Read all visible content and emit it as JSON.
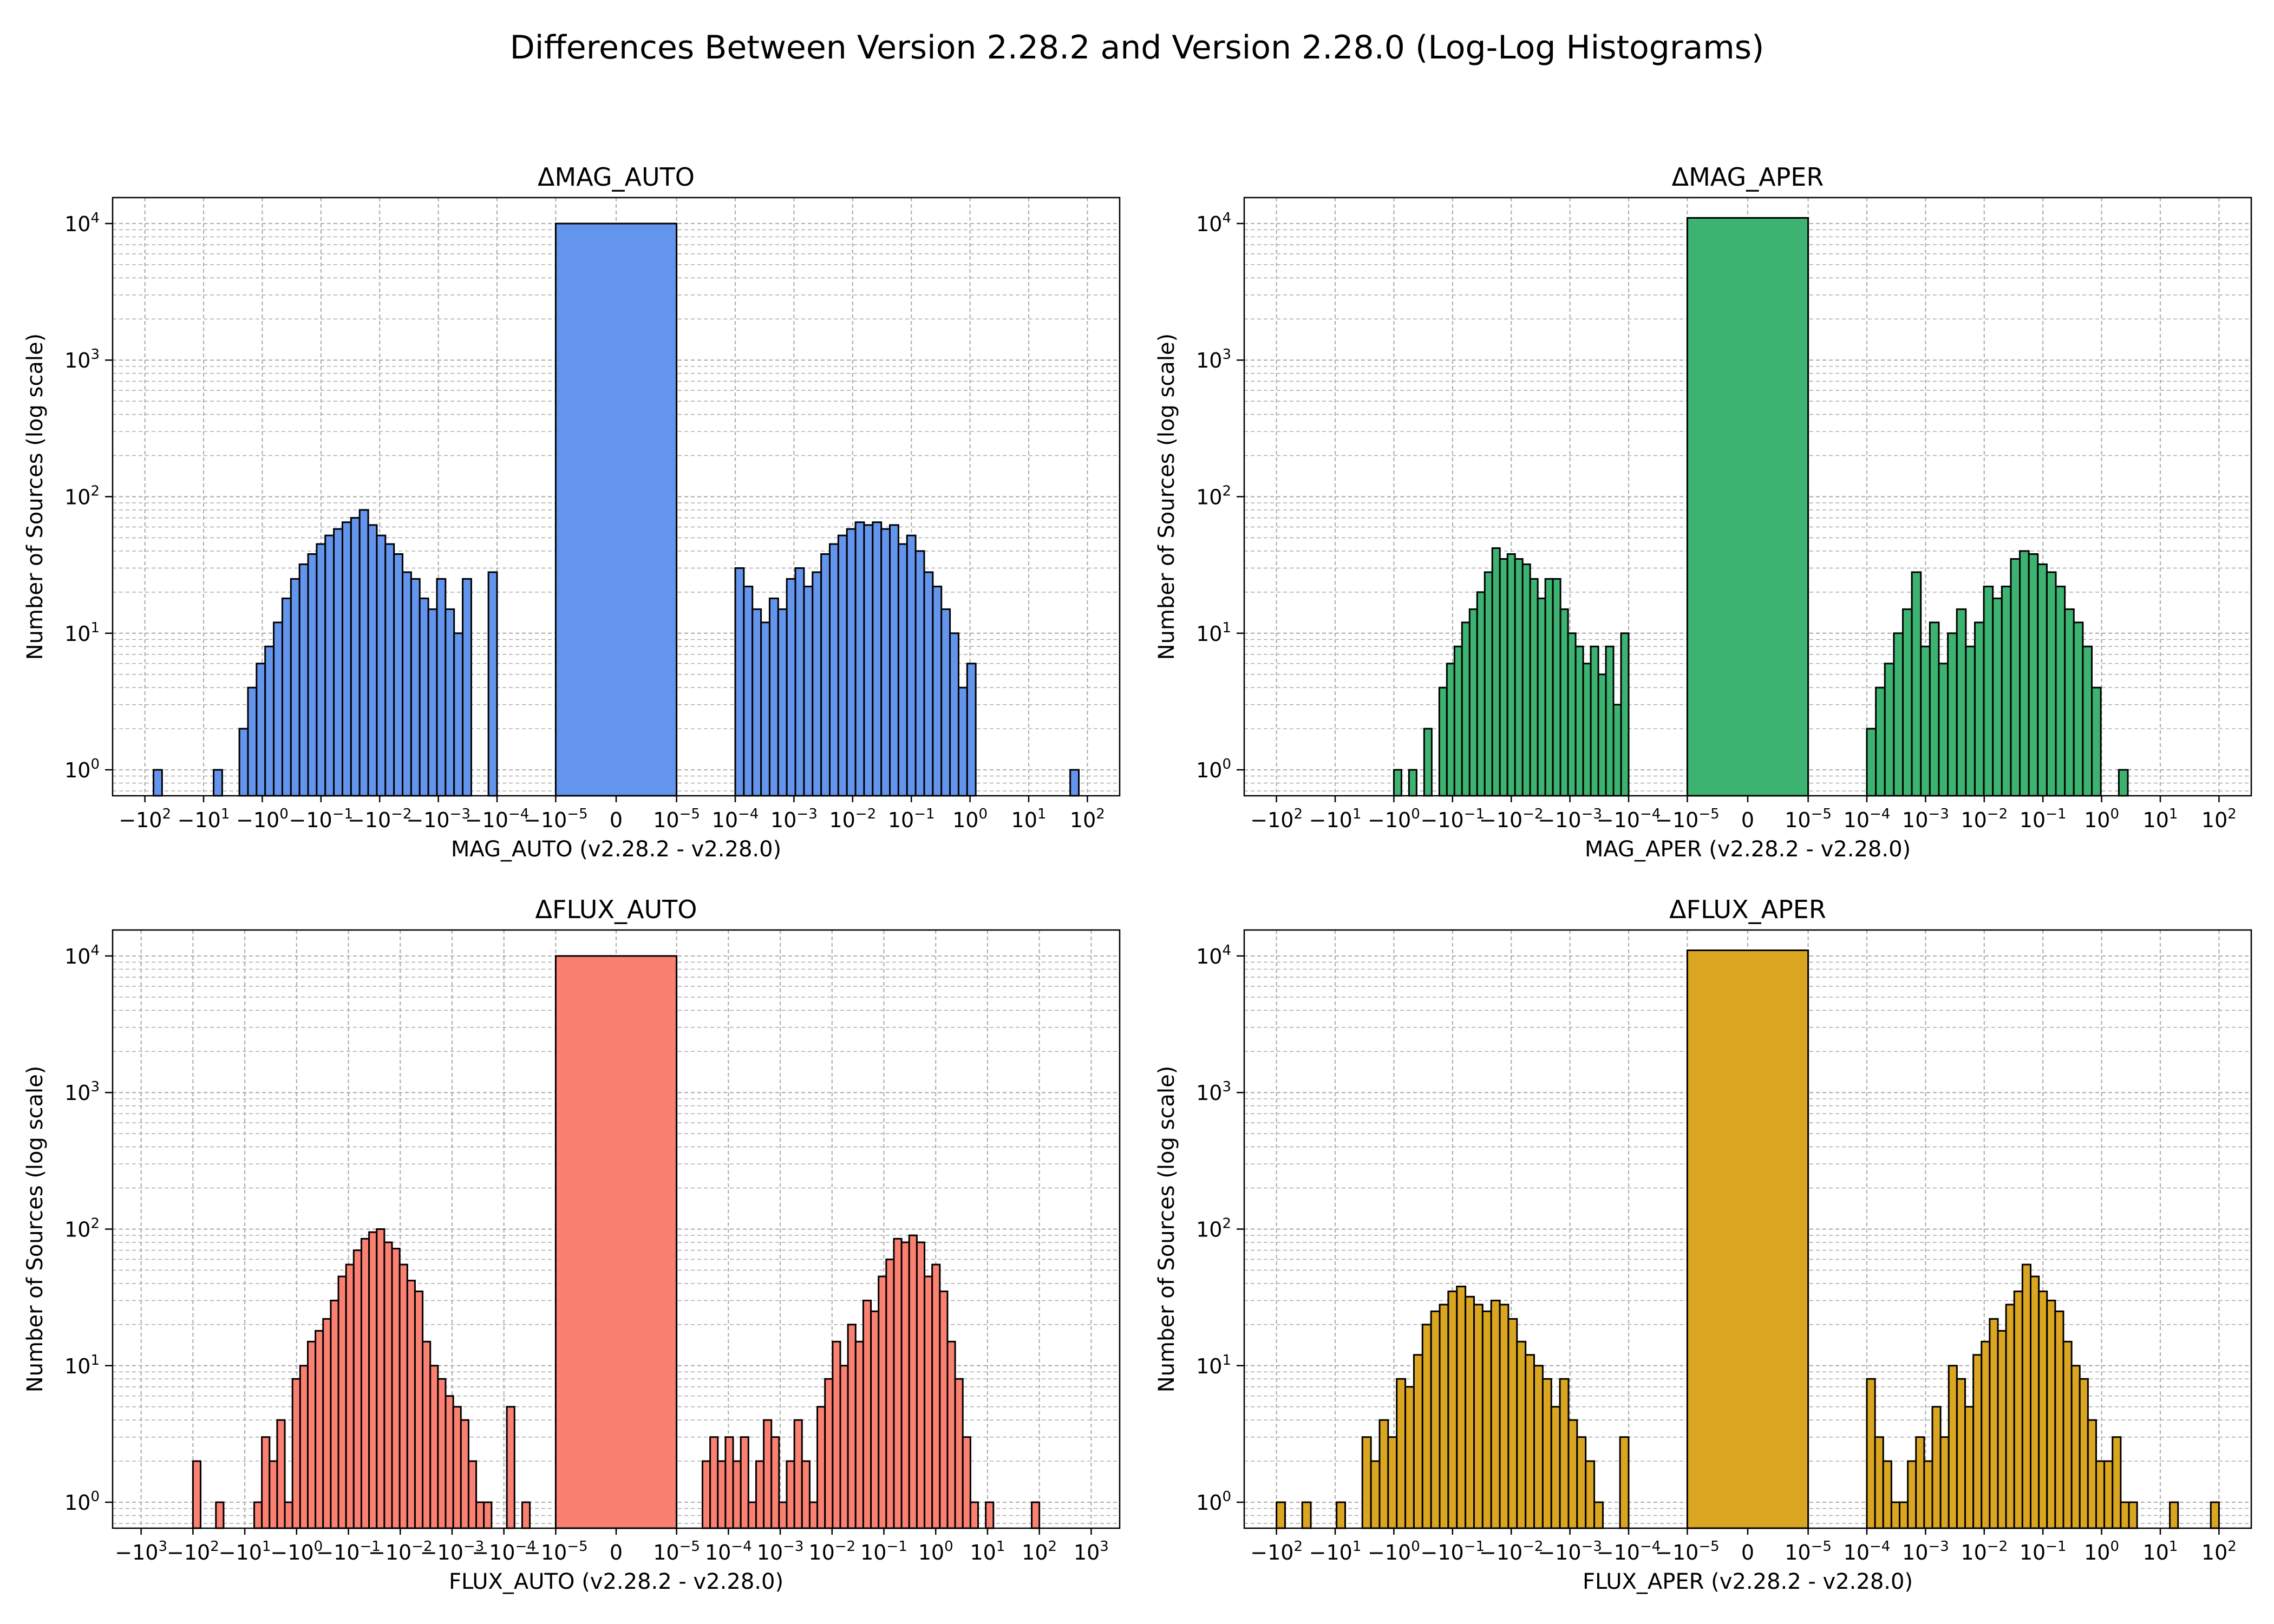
{
  "figure": {
    "title": "Differences Between Version 2.28.2 and Version 2.28.0 (Log-Log Histograms)"
  },
  "chart_data": [
    {
      "id": "mag_auto",
      "type": "bar",
      "title": "ΔMAG_AUTO",
      "xlabel": "MAG_AUTO (v2.28.2 - v2.28.0)",
      "ylabel": "Number of Sources (log scale)",
      "y_scale": "log",
      "x_scale": "symlog",
      "grid": true,
      "color": "#6495ED",
      "edge_color": "#000000",
      "xlim": [
        -300,
        300
      ],
      "x_ticks": [
        "-1e2",
        "-1e1",
        "-1e0",
        "-1e-1",
        "-1e-2",
        "-1e-3",
        "-1e-4",
        "-1e-5",
        "0",
        "1e-5",
        "1e-4",
        "1e-3",
        "1e-2",
        "1e-1",
        "1e0",
        "1e1",
        "1e2"
      ],
      "y_ticks": [
        "1e0",
        "1e1",
        "1e2",
        "1e3",
        "1e4"
      ],
      "center_bin": {
        "x_range": [
          -1e-05,
          1e-05
        ],
        "count": 10000
      },
      "negative_bins": {
        "log10_abs_start": 2.0,
        "log10_abs_end": -4.0,
        "counts": [
          0,
          1,
          0,
          0,
          0,
          0,
          0,
          0,
          1,
          0,
          0,
          2,
          4,
          6,
          8,
          12,
          18,
          25,
          32,
          38,
          45,
          52,
          58,
          65,
          70,
          80,
          62,
          52,
          45,
          38,
          28,
          25,
          18,
          15,
          25,
          15,
          10,
          25,
          0,
          0,
          28
        ]
      },
      "positive_bins": {
        "log10_abs_start": -4.0,
        "log10_abs_end": 2.0,
        "counts": [
          30,
          22,
          15,
          12,
          18,
          15,
          25,
          30,
          22,
          28,
          38,
          45,
          52,
          58,
          65,
          62,
          65,
          58,
          62,
          45,
          52,
          40,
          28,
          22,
          15,
          10,
          4,
          6,
          0,
          0,
          0,
          0,
          0,
          0,
          0,
          0,
          0,
          0,
          0,
          1,
          0
        ]
      }
    },
    {
      "id": "mag_aper",
      "type": "bar",
      "title": "ΔMAG_APER",
      "xlabel": "MAG_APER (v2.28.2 - v2.28.0)",
      "ylabel": "Number of Sources (log scale)",
      "y_scale": "log",
      "x_scale": "symlog",
      "grid": true,
      "color": "#3CB371",
      "edge_color": "#000000",
      "xlim": [
        -300,
        300
      ],
      "x_ticks": [
        "-1e2",
        "-1e1",
        "-1e0",
        "-1e-1",
        "-1e-2",
        "-1e-3",
        "-1e-4",
        "-1e-5",
        "0",
        "1e-5",
        "1e-4",
        "1e-3",
        "1e-2",
        "1e-1",
        "1e0",
        "1e1",
        "1e2"
      ],
      "y_ticks": [
        "1e0",
        "1e1",
        "1e2",
        "1e3",
        "1e4"
      ],
      "center_bin": {
        "x_range": [
          -1e-05,
          1e-05
        ],
        "count": 11000
      },
      "negative_bins": {
        "log10_abs_start": 0.0,
        "log10_abs_end": -4.0,
        "counts": [
          1,
          0,
          1,
          0,
          2,
          0,
          4,
          6,
          8,
          12,
          15,
          20,
          28,
          42,
          35,
          38,
          35,
          32,
          25,
          18,
          25,
          25,
          15,
          10,
          8,
          6,
          8,
          5,
          8,
          3,
          10
        ]
      },
      "positive_bins": {
        "log10_abs_start": -4.0,
        "log10_abs_end": 0.6,
        "counts": [
          2,
          4,
          6,
          10,
          15,
          28,
          8,
          12,
          6,
          10,
          15,
          8,
          12,
          22,
          18,
          22,
          35,
          40,
          38,
          32,
          28,
          22,
          15,
          12,
          8,
          4,
          0,
          0,
          1,
          0
        ]
      }
    },
    {
      "id": "flux_auto",
      "type": "bar",
      "title": "ΔFLUX_AUTO",
      "xlabel": "FLUX_AUTO (v2.28.2 - v2.28.0)",
      "ylabel": "Number of Sources (log scale)",
      "y_scale": "log",
      "x_scale": "symlog",
      "grid": true,
      "color": "#FA8072",
      "edge_color": "#000000",
      "xlim": [
        -3000,
        3000
      ],
      "x_ticks": [
        "-1e3",
        "-1e2",
        "-1e1",
        "-1e0",
        "-1e-1",
        "-1e-2",
        "-1e-3",
        "-1e-4",
        "-1e-5",
        "0",
        "1e-5",
        "1e-4",
        "1e-3",
        "1e-2",
        "1e-1",
        "1e0",
        "1e1",
        "1e2",
        "1e3"
      ],
      "y_ticks": [
        "1e0",
        "1e1",
        "1e2",
        "1e3",
        "1e4"
      ],
      "center_bin": {
        "x_range": [
          -1e-05,
          1e-05
        ],
        "count": 10000
      },
      "negative_bins": {
        "log10_abs_start": 2.0,
        "log10_abs_end": -4.5,
        "counts": [
          2,
          0,
          0,
          1,
          0,
          0,
          0,
          0,
          1,
          3,
          2,
          4,
          1,
          8,
          10,
          15,
          18,
          22,
          30,
          45,
          55,
          70,
          85,
          95,
          100,
          80,
          72,
          55,
          42,
          35,
          15,
          10,
          8,
          6,
          5,
          4,
          2,
          1,
          1,
          0,
          0,
          5,
          0,
          1
        ]
      },
      "positive_bins": {
        "log10_abs_start": -4.5,
        "log10_abs_end": 2.0,
        "counts": [
          2,
          3,
          2,
          3,
          2,
          3,
          1,
          2,
          4,
          3,
          1,
          2,
          4,
          2,
          1,
          5,
          8,
          15,
          10,
          20,
          15,
          30,
          25,
          45,
          60,
          85,
          80,
          90,
          80,
          45,
          55,
          35,
          15,
          8,
          3,
          1,
          0,
          1,
          0,
          0,
          0,
          0,
          0,
          1
        ]
      }
    },
    {
      "id": "flux_aper",
      "type": "bar",
      "title": "ΔFLUX_APER",
      "xlabel": "FLUX_APER (v2.28.2 - v2.28.0)",
      "ylabel": "Number of Sources (log scale)",
      "y_scale": "log",
      "x_scale": "symlog",
      "grid": true,
      "color": "#DAA520",
      "edge_color": "#000000",
      "xlim": [
        -400,
        400
      ],
      "x_ticks": [
        "-1e2",
        "-1e1",
        "-1e0",
        "-1e-1",
        "-1e-2",
        "-1e-3",
        "-1e-4",
        "-1e-5",
        "0",
        "1e-5",
        "1e-4",
        "1e-3",
        "1e-2",
        "1e-1",
        "1e0",
        "1e1",
        "1e2"
      ],
      "y_ticks": [
        "1e0",
        "1e1",
        "1e2",
        "1e3",
        "1e4"
      ],
      "center_bin": {
        "x_range": [
          -1e-05,
          1e-05
        ],
        "count": 11000
      },
      "negative_bins": {
        "log10_abs_start": 2.0,
        "log10_abs_end": -4.0,
        "counts": [
          1,
          0,
          0,
          1,
          0,
          0,
          0,
          1,
          0,
          0,
          3,
          2,
          4,
          3,
          8,
          7,
          12,
          20,
          25,
          28,
          35,
          38,
          32,
          28,
          25,
          30,
          28,
          22,
          15,
          12,
          10,
          8,
          5,
          8,
          4,
          3,
          2,
          1,
          0,
          0,
          3
        ]
      },
      "positive_bins": {
        "log10_abs_start": -4.0,
        "log10_abs_end": 2.0,
        "counts": [
          8,
          3,
          2,
          1,
          1,
          2,
          3,
          2,
          5,
          3,
          10,
          8,
          5,
          12,
          15,
          22,
          18,
          28,
          35,
          55,
          45,
          35,
          30,
          25,
          15,
          10,
          8,
          4,
          2,
          2,
          3,
          1,
          1,
          0,
          0,
          0,
          0,
          1,
          0,
          0,
          0,
          0,
          1
        ]
      }
    }
  ]
}
